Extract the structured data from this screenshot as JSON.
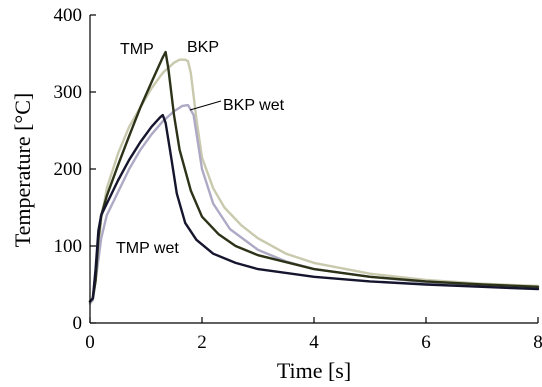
{
  "chart_data": {
    "type": "line",
    "xlabel": "Time [s]",
    "ylabel": "Temperature [°C]",
    "xlim": [
      0,
      8
    ],
    "ylim": [
      0,
      400
    ],
    "xticks": [
      0,
      2,
      4,
      6,
      8
    ],
    "yticks": [
      0,
      100,
      200,
      300,
      400
    ],
    "grid": false,
    "series": [
      {
        "name": "TMP",
        "color": "#2c3318",
        "x": [
          0,
          0.05,
          0.1,
          0.15,
          0.2,
          0.3,
          0.5,
          0.7,
          0.9,
          1.1,
          1.3,
          1.35,
          1.4,
          1.5,
          1.6,
          1.8,
          2.0,
          2.3,
          2.6,
          3.0,
          4.0,
          5.0,
          6.0,
          7.0,
          8.0
        ],
        "y": [
          28,
          32,
          55,
          110,
          140,
          165,
          205,
          243,
          280,
          313,
          345,
          352,
          330,
          270,
          225,
          172,
          138,
          115,
          100,
          88,
          70,
          60,
          54,
          50,
          47
        ]
      },
      {
        "name": "BKP",
        "color": "#c9c9ae",
        "x": [
          0,
          0.05,
          0.1,
          0.2,
          0.3,
          0.5,
          0.7,
          0.9,
          1.1,
          1.3,
          1.5,
          1.6,
          1.7,
          1.75,
          1.8,
          1.9,
          2.0,
          2.2,
          2.4,
          2.7,
          3.0,
          3.5,
          4.0,
          5.0,
          6.0,
          7.0,
          8.0
        ],
        "y": [
          25,
          30,
          60,
          135,
          175,
          220,
          255,
          280,
          305,
          325,
          338,
          342,
          342,
          340,
          325,
          265,
          215,
          175,
          150,
          127,
          110,
          90,
          78,
          64,
          56,
          51,
          48
        ]
      },
      {
        "name": "BKP wet",
        "color": "#aeaac5",
        "x": [
          0,
          0.05,
          0.1,
          0.2,
          0.3,
          0.5,
          0.7,
          0.9,
          1.1,
          1.3,
          1.5,
          1.65,
          1.75,
          1.85,
          2.0,
          2.2,
          2.5,
          3.0,
          3.5,
          4.0,
          5.0,
          6.0,
          7.0,
          8.0
        ],
        "y": [
          26,
          30,
          55,
          110,
          140,
          170,
          200,
          225,
          245,
          262,
          275,
          282,
          283,
          270,
          200,
          155,
          122,
          95,
          80,
          70,
          60,
          53,
          49,
          46
        ]
      },
      {
        "name": "TMP wet",
        "color": "#15152e",
        "x": [
          0,
          0.05,
          0.1,
          0.15,
          0.2,
          0.3,
          0.5,
          0.7,
          0.9,
          1.1,
          1.25,
          1.3,
          1.35,
          1.45,
          1.55,
          1.7,
          1.9,
          2.2,
          2.6,
          3.0,
          4.0,
          5.0,
          6.0,
          7.0,
          8.0
        ],
        "y": [
          28,
          32,
          70,
          120,
          140,
          155,
          185,
          212,
          235,
          255,
          267,
          270,
          260,
          215,
          168,
          130,
          108,
          90,
          78,
          70,
          60,
          54,
          50,
          47,
          44
        ]
      }
    ]
  },
  "labels": {
    "tmp": "TMP",
    "bkp": "BKP",
    "bkp_wet": "BKP wet",
    "tmp_wet": "TMP wet"
  }
}
